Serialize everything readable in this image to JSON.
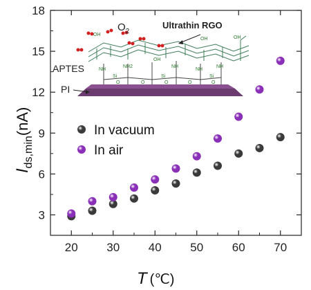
{
  "chart_data": {
    "type": "scatter",
    "xlabel": "T",
    "xunit": "(℃)",
    "ylabel_main": "I",
    "ylabel_sub": "ds,min",
    "ylabel_unit": "(nA)",
    "xlim": [
      15,
      75
    ],
    "ylim": [
      1.5,
      18
    ],
    "xticks": [
      20,
      30,
      40,
      50,
      60,
      70
    ],
    "yticks": [
      3,
      6,
      9,
      12,
      15,
      18
    ],
    "legend_position": "center-left",
    "series": [
      {
        "name": "In vacuum",
        "color": "#3a3a3a",
        "points": [
          [
            20,
            2.9
          ],
          [
            25,
            3.3
          ],
          [
            30,
            3.8
          ],
          [
            35,
            4.2
          ],
          [
            40,
            4.8
          ],
          [
            45,
            5.3
          ],
          [
            50,
            6.1
          ],
          [
            55,
            6.6
          ],
          [
            60,
            7.5
          ],
          [
            65,
            7.9
          ],
          [
            70,
            8.7
          ]
        ]
      },
      {
        "name": "In air",
        "color": "#8a2fb8",
        "points": [
          [
            20,
            3.1
          ],
          [
            25,
            4.0
          ],
          [
            30,
            4.3
          ],
          [
            35,
            5.0
          ],
          [
            40,
            5.6
          ],
          [
            45,
            6.4
          ],
          [
            50,
            7.3
          ],
          [
            55,
            8.6
          ],
          [
            60,
            10.2
          ],
          [
            65,
            12.2
          ],
          [
            70,
            14.3
          ]
        ]
      }
    ]
  },
  "inset": {
    "o2_label": "O",
    "o2_sub": "2",
    "rgo_label": "Ultrathin RGO",
    "aptes_label": "APTES",
    "pi_label": "PI",
    "nh_label": "NH",
    "nh2_label": "NH2",
    "si_label": "Si",
    "oh_label": "OH",
    "o_label": "O",
    "cooh_label": "OH",
    "colors": {
      "graphene": "#3e7d5a",
      "substrate": "#6b3a6e",
      "o2": "#d32020"
    }
  }
}
